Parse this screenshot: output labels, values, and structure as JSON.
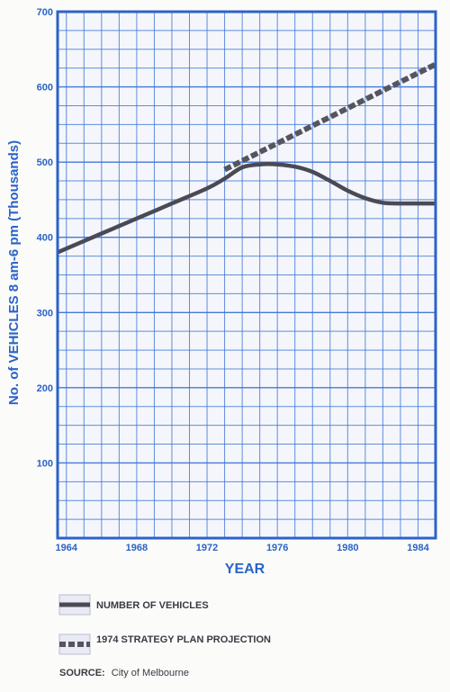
{
  "chart_data": {
    "type": "line",
    "xlabel": "YEAR",
    "ylabel": "No. of VEHICLES 8 am-6 pm (Thousands)",
    "xlim": [
      1963.5,
      1985
    ],
    "ylim": [
      0,
      700
    ],
    "x_ticks": [
      "1964",
      "1968",
      "1972",
      "1976",
      "1980",
      "1984"
    ],
    "y_ticks": [
      "100",
      "200",
      "300",
      "400",
      "500",
      "600",
      "700"
    ],
    "grid": true,
    "series": [
      {
        "name": "NUMBER OF VEHICLES",
        "style": "solid",
        "color": "#4a4a55",
        "x": [
          1963.5,
          1966,
          1968,
          1970,
          1972,
          1973,
          1974,
          1975,
          1976,
          1977,
          1978,
          1979,
          1980,
          1981,
          1982,
          1983,
          1984,
          1985
        ],
        "y": [
          380,
          405,
          425,
          445,
          465,
          478,
          493,
          497,
          497,
          494,
          487,
          475,
          462,
          452,
          446,
          445,
          445,
          445
        ]
      },
      {
        "name": "1974 STRATEGY PLAN PROJECTION",
        "style": "dashed",
        "color": "#55555f",
        "x": [
          1973,
          1985
        ],
        "y": [
          490,
          630
        ]
      }
    ]
  },
  "legend": {
    "items": [
      {
        "label": "NUMBER OF VEHICLES",
        "style": "solid"
      },
      {
        "label": "1974 STRATEGY PLAN PROJECTION",
        "style": "dashed"
      }
    ]
  },
  "source": {
    "key": "SOURCE:",
    "value": "City of Melbourne"
  },
  "colors": {
    "axis_blue": "#2b63c8",
    "grid_blue": "#3b73d6",
    "line_gray": "#4a4a55"
  }
}
